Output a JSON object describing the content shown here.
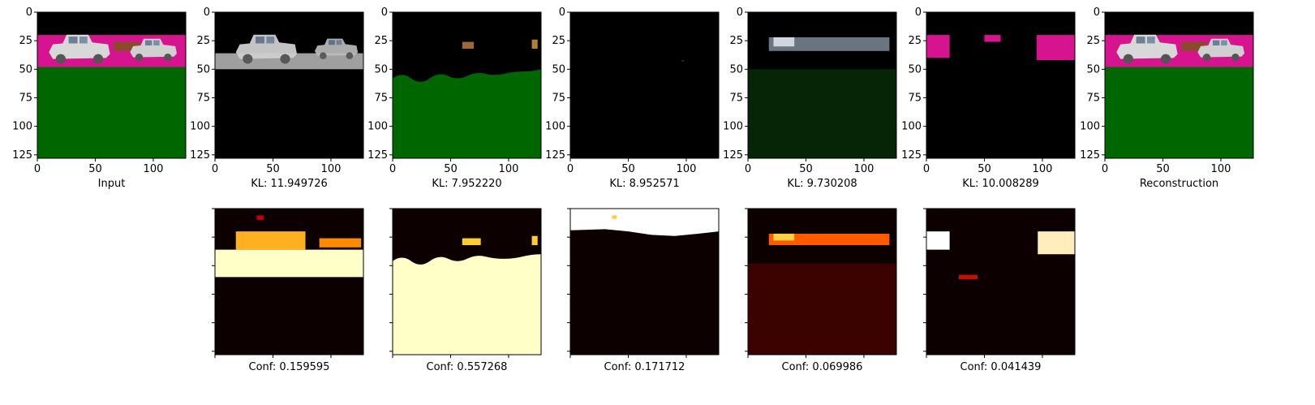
{
  "figure": {
    "row1_panels": [
      {
        "caption": "Input",
        "content": "input-scene"
      },
      {
        "caption": "KL: 11.949726",
        "content": "slot-1-trucks"
      },
      {
        "caption": "KL: 7.952220",
        "content": "slot-2-ground"
      },
      {
        "caption": "KL: 8.952571",
        "content": "slot-3-empty"
      },
      {
        "caption": "KL: 9.730208",
        "content": "slot-4-trucks-faint"
      },
      {
        "caption": "KL: 10.008289",
        "content": "slot-5-background"
      },
      {
        "caption": "Reconstruction",
        "content": "reconstruction-scene"
      }
    ],
    "row2_panels": [
      {
        "caption": "Conf: 0.159595",
        "content": "mask-1"
      },
      {
        "caption": "Conf: 0.557268",
        "content": "mask-2"
      },
      {
        "caption": "Conf: 0.171712",
        "content": "mask-3"
      },
      {
        "caption": "Conf: 0.069986",
        "content": "mask-4"
      },
      {
        "caption": "Conf: 0.041439",
        "content": "mask-5"
      }
    ],
    "x_ticks": [
      "0",
      "50",
      "100"
    ],
    "y_ticks": [
      "0",
      "25",
      "50",
      "75",
      "100",
      "125"
    ],
    "colors": {
      "ground": "#006600",
      "sky": "#d7148f",
      "truck": "#c8c8c8",
      "black": "#000000",
      "mask_dark": "#0c0000",
      "mask_hot": "#ffffc8"
    }
  }
}
